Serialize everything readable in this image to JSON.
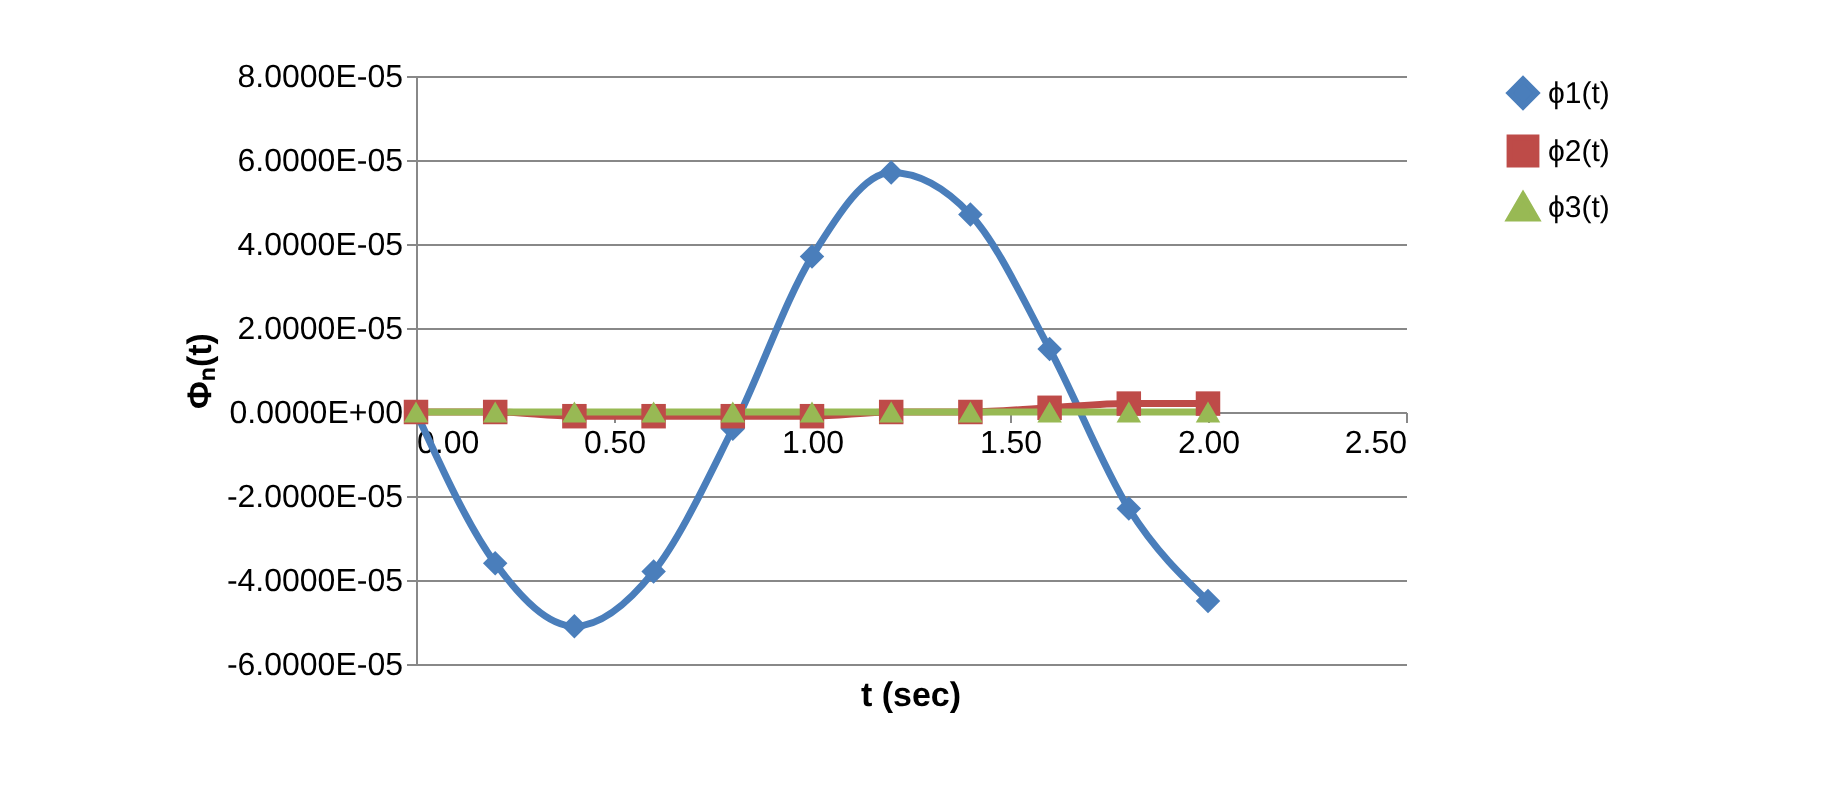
{
  "chart_data": {
    "type": "line",
    "xlabel": "t (sec)",
    "ylabel": "Φₙ(t)",
    "x": [
      0,
      0.2,
      0.4,
      0.6,
      0.8,
      1.0,
      1.2,
      1.4,
      1.6,
      1.8,
      2.0
    ],
    "series": [
      {
        "name": "ϕ1(t)",
        "color": "#4a7ebb",
        "marker": "diamond",
        "values": [
          0,
          -3.6e-05,
          -5.1e-05,
          -3.8e-05,
          -4e-06,
          3.7e-05,
          5.7e-05,
          4.7e-05,
          1.5e-05,
          -2.3e-05,
          -4.5e-05
        ]
      },
      {
        "name": "ϕ2(t)",
        "color": "#be4b48",
        "marker": "square",
        "values": [
          0,
          0,
          -1e-06,
          -1e-06,
          -1e-06,
          -1e-06,
          0,
          0,
          1e-06,
          2e-06,
          2e-06
        ]
      },
      {
        "name": "ϕ3(t)",
        "color": "#98b954",
        "marker": "triangle",
        "values": [
          0,
          0,
          0,
          0,
          0,
          0,
          0,
          0,
          0,
          0,
          0
        ]
      }
    ],
    "xlim": [
      0,
      2.5
    ],
    "xticks": [
      {
        "value": 0,
        "label": "0.00"
      },
      {
        "value": 0.5,
        "label": "0.50"
      },
      {
        "value": 1,
        "label": "1.00"
      },
      {
        "value": 1.5,
        "label": "1.50"
      },
      {
        "value": 2,
        "label": "2.00"
      },
      {
        "value": 2.5,
        "label": "2.50"
      }
    ],
    "ylim": [
      -6e-05,
      8e-05
    ],
    "yticks": [
      {
        "value": -6e-05,
        "label": "-6.0000E-05"
      },
      {
        "value": -4e-05,
        "label": "-4.0000E-05"
      },
      {
        "value": -2e-05,
        "label": "-2.0000E-05"
      },
      {
        "value": 0,
        "label": "0.0000E+00"
      },
      {
        "value": 2e-05,
        "label": "2.0000E-05"
      },
      {
        "value": 4e-05,
        "label": "4.0000E-05"
      },
      {
        "value": 6e-05,
        "label": "6.0000E-05"
      },
      {
        "value": 8e-05,
        "label": "8.0000E-05"
      }
    ],
    "grid": "y",
    "legend": "right",
    "line_style": "solid"
  }
}
